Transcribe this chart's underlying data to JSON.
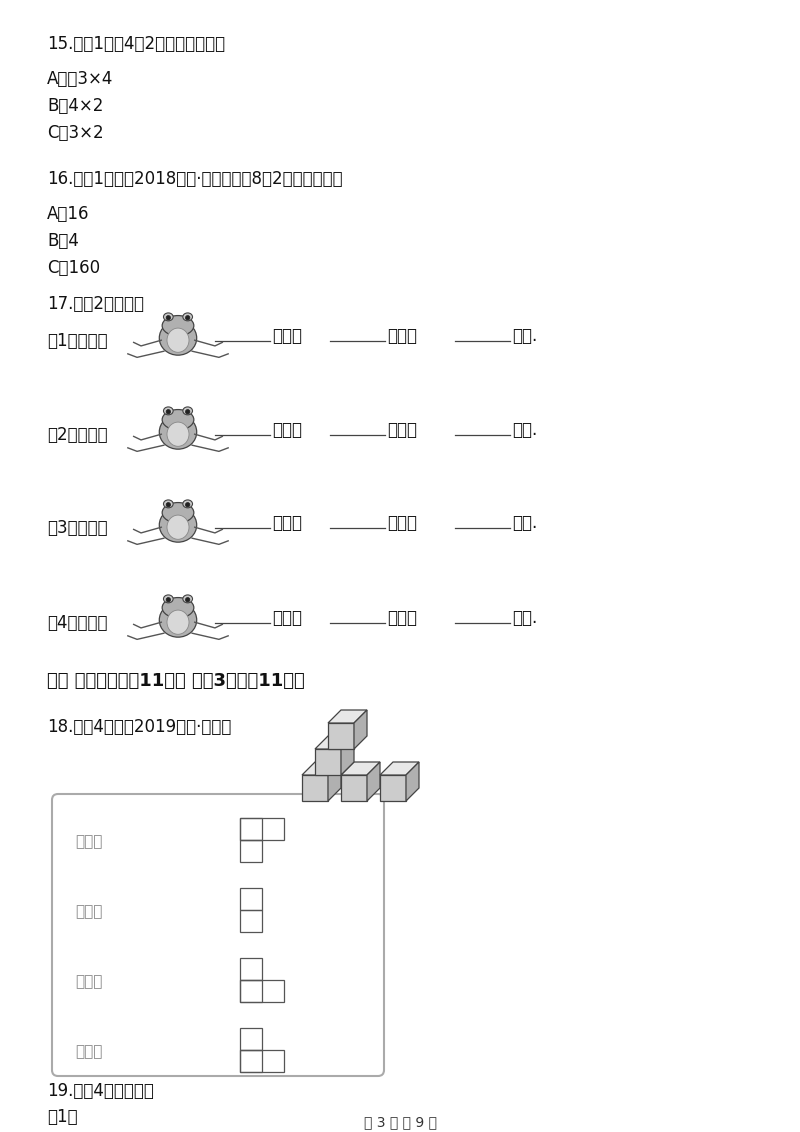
{
  "bg_color": "#ffffff",
  "q15_text": "15.　（1分）4乘2写作（　　）。",
  "q15_a": "A．　3×4",
  "q15_b": "B．4×2",
  "q15_c": "C．3×2",
  "q16_text": "16.　（1分）（2018三上·永宁期中）8是2的（　　）倍",
  "q16_a": "A．16",
  "q16_b": "B．4",
  "q16_c": "C．160",
  "q17_text": "17.　（2分）填空",
  "frog_rows": [
    {
      "label": "（1）　一只",
      "suffix1": "张嘴，",
      "suffix2": "只眼睛",
      "suffix3": "条腿."
    },
    {
      "label": "（2）　两只",
      "suffix1": "张嘴，",
      "suffix2": "只眼睛",
      "suffix3": "条腿."
    },
    {
      "label": "（3）　三只",
      "suffix1": "张嘴，",
      "suffix2": "只眼睛",
      "suffix3": "条腿."
    },
    {
      "label": "（4）　四只",
      "suffix1": "张嘴，",
      "suffix2": "只眼睛",
      "suffix3": "条腿."
    }
  ],
  "section5_title": "五、 操作题。（入11分） （兲3题；入11分）",
  "q18_text": "18.　（4分）（2019六上·龙华）",
  "views": [
    {
      "label": "正面看",
      "shape": "front"
    },
    {
      "label": "右面看",
      "shape": "right"
    },
    {
      "label": "上面看",
      "shape": "top"
    },
    {
      "label": "左面看",
      "shape": "left"
    }
  ],
  "q19_text": "19.　（4分）画线段",
  "q19_1": "（1）",
  "page_footer": "第 3 页 八 9 页"
}
